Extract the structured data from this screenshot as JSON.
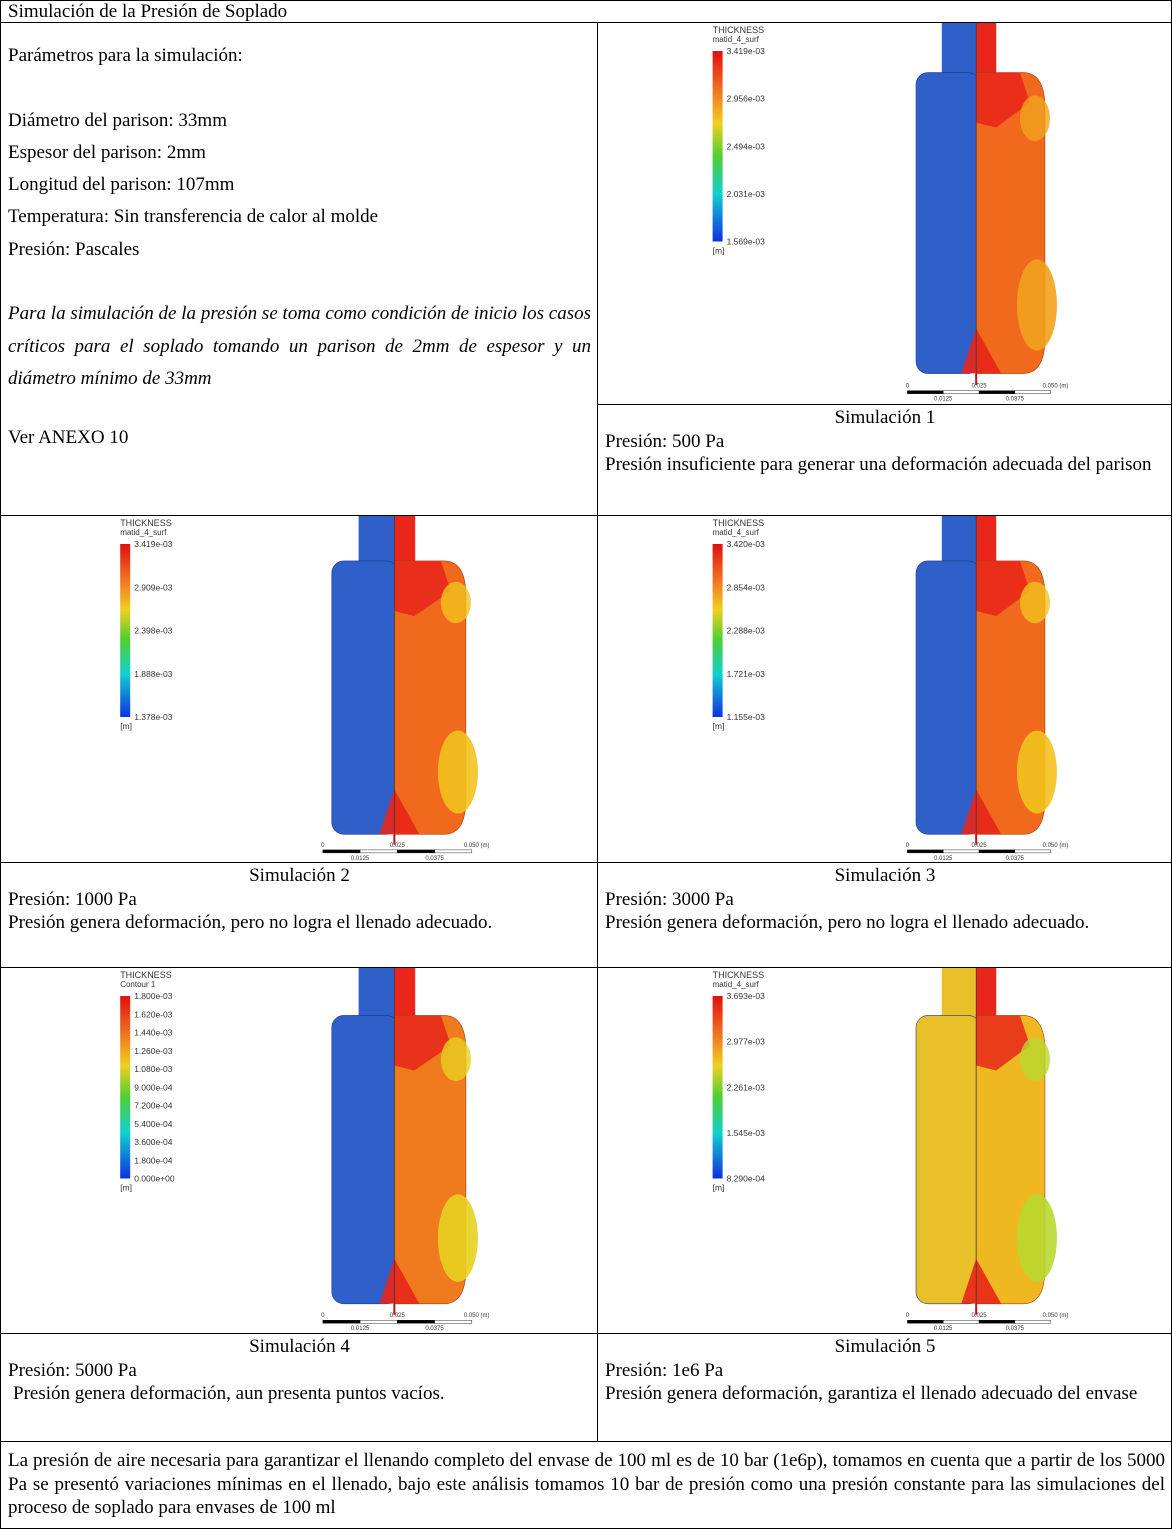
{
  "title": "Simulación de la Presión de Soplado",
  "parameters": {
    "heading": "Parámetros para la simulación:",
    "items": [
      "Diámetro del parison: 33mm",
      "Espesor del parison: 2mm",
      "Longitud del parison: 107mm",
      "Temperatura: Sin transferencia de calor al molde",
      "Presión: Pascales"
    ],
    "note": "Para la simulación de la presión se toma como condición de inicio los casos críticos para el soplado tomando un parison de 2mm de espesor y un diámetro mínimo de 33mm",
    "reference": "Ver ANEXO 10"
  },
  "simulations": [
    {
      "caption": "Simulación 1",
      "pressure": "Presión: 500 Pa",
      "description": "Presión insuficiente para generar una deformación adecuada del parison",
      "legend": {
        "title": "THICKNESS",
        "subtitle": "matid_4_surf",
        "ticks": [
          "3.419e-03",
          "2.956e-03",
          "2.494e-03",
          "2.031e-03",
          "1.569e-03"
        ],
        "unit": "[m]"
      },
      "scale": [
        "0",
        "0.025",
        "0.050 (m)",
        "0.0125",
        "0.0375"
      ]
    },
    {
      "caption": "Simulación 2",
      "pressure": "Presión: 1000 Pa",
      "description": "Presión genera deformación, pero no logra el llenado adecuado.",
      "legend": {
        "title": "THICKNESS",
        "subtitle": "matid_4_surf",
        "ticks": [
          "3.419e-03",
          "2.909e-03",
          "2.398e-03",
          "1.888e-03",
          "1.378e-03"
        ],
        "unit": "[m]"
      },
      "scale": [
        "0",
        "0.025",
        "0.050 (m)",
        "0.0125",
        "0.0375"
      ]
    },
    {
      "caption": "Simulación 3",
      "pressure": "Presión: 3000 Pa",
      "description": "Presión genera deformación, pero no logra el llenado adecuado.",
      "legend": {
        "title": "THICKNESS",
        "subtitle": "matid_4_surf",
        "ticks": [
          "3.420e-03",
          "2.854e-03",
          "2.288e-03",
          "1.721e-03",
          "1.155e-03"
        ],
        "unit": "[m]"
      },
      "scale": [
        "0",
        "0.025",
        "0.050 (m)",
        "0.0125",
        "0.0375"
      ]
    },
    {
      "caption": "Simulación 4",
      "pressure": "Presión: 5000 Pa",
      "description": "Presión genera deformación, aun presenta puntos vacíos.",
      "legend": {
        "title": "THICKNESS",
        "subtitle": "Contour 1",
        "ticks": [
          "1.800e-03",
          "1.620e-03",
          "1.440e-03",
          "1.260e-03",
          "1.080e-03",
          "9.000e-04",
          "7.200e-04",
          "5.400e-04",
          "3.600e-04",
          "1.800e-04",
          "0.000e+00"
        ],
        "unit": "[m]"
      },
      "scale": [
        "0",
        "0.025",
        "0.050 (m)",
        "0.0125",
        "0.0375"
      ]
    },
    {
      "caption": "Simulación 5",
      "pressure": "Presión: 1e6 Pa",
      "description": "Presión genera deformación, garantiza el llenado adecuado del envase",
      "legend": {
        "title": "THICKNESS",
        "subtitle": "matid_4_surf",
        "ticks": [
          "3.693e-03",
          "2.977e-03",
          "2.261e-03",
          "1.545e-03",
          "8.290e-04"
        ],
        "unit": "[m]"
      },
      "scale": [
        "0",
        "0.025",
        "0.050 (m)",
        "0.0125",
        "0.0375"
      ]
    }
  ],
  "conclusion": "La presión de aire necesaria para garantizar  el llenando completo del envase de 100 ml es de 10 bar (1e6p), tomamos en cuenta que a partir de los 5000 Pa se presentó variaciones mínimas en el llenado, bajo este análisis tomamos 10 bar de presión como una presión constante para las simulaciones del proceso de soplado para envases de 100 ml"
}
